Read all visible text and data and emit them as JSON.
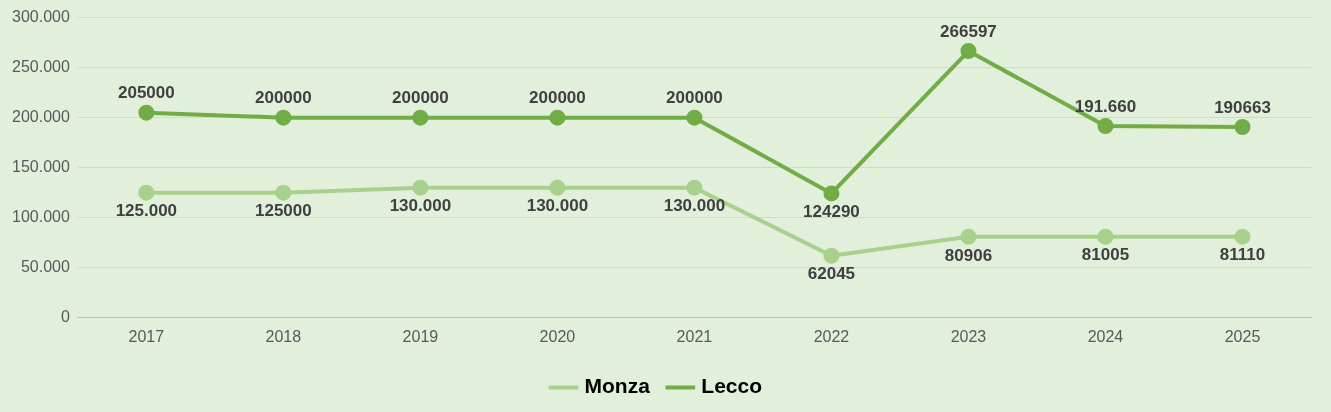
{
  "chart_data": {
    "type": "line",
    "categories": [
      "2017",
      "2018",
      "2019",
      "2020",
      "2021",
      "2022",
      "2023",
      "2024",
      "2025"
    ],
    "series": [
      {
        "name": "Monza",
        "color": "#a9d18e",
        "values": [
          125000,
          125000,
          130000,
          130000,
          130000,
          62045,
          80906,
          81005,
          81110
        ],
        "value_labels": [
          "125.000",
          "125000",
          "130.000",
          "130.000",
          "130.000",
          "62045",
          "80906",
          "81005",
          "81110"
        ]
      },
      {
        "name": "Lecco",
        "color": "#70ad47",
        "values": [
          205000,
          200000,
          200000,
          200000,
          200000,
          124290,
          266597,
          191660,
          190663
        ],
        "value_labels": [
          "205000",
          "200000",
          "200000",
          "200000",
          "200000",
          "124290",
          "266597",
          "191.660",
          "190663"
        ]
      }
    ],
    "ylim": [
      0,
      300000
    ],
    "yticks": [
      0,
      {
        "value": 50000,
        "label": "50.000"
      },
      {
        "value": 100000,
        "label": "100.000"
      },
      {
        "value": 150000,
        "label": "150.000"
      },
      {
        "value": 200000,
        "label": "200.000"
      },
      {
        "value": 250000,
        "label": "250.000"
      },
      {
        "value": 300000,
        "label": "300.000"
      }
    ],
    "grid": "y",
    "legend": "bottom",
    "marker": "circle",
    "line_style": "solid"
  }
}
